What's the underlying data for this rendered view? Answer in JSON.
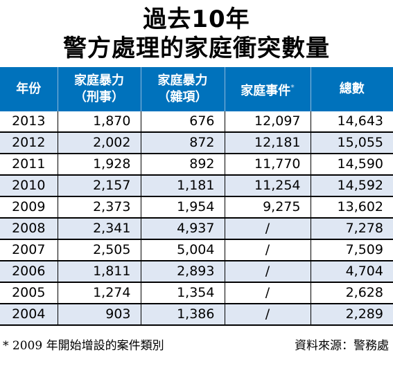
{
  "title": {
    "line1": "過去10年",
    "line2": "警方處理的家庭衝突數量"
  },
  "table": {
    "headers": {
      "year": "年份",
      "dv_criminal_line1": "家庭暴力",
      "dv_criminal_line2": "（刑事）",
      "dv_misc_line1": "家庭暴力",
      "dv_misc_line2": "（雜項）",
      "incident": "家庭事件",
      "incident_mark": "*",
      "total": "總數"
    },
    "rows": [
      [
        "2013",
        "1,870",
        "676",
        "12,097",
        "14,643"
      ],
      [
        "2012",
        "2,002",
        "872",
        "12,181",
        "15,055"
      ],
      [
        "2011",
        "1,928",
        "892",
        "11,770",
        "14,590"
      ],
      [
        "2010",
        "2,157",
        "1,181",
        "11,254",
        "14,592"
      ],
      [
        "2009",
        "2,373",
        "1,954",
        "9,275",
        "13,602"
      ],
      [
        "2008",
        "2,341",
        "4,937",
        "/",
        "7,278"
      ],
      [
        "2007",
        "2,505",
        "5,004",
        "/",
        "7,509"
      ],
      [
        "2006",
        "1,811",
        "2,893",
        "/",
        "4,704"
      ],
      [
        "2005",
        "1,274",
        "1,354",
        "/",
        "2,628"
      ],
      [
        "2004",
        "903",
        "1,386",
        "/",
        "2,289"
      ]
    ]
  },
  "footer": {
    "note": "* 2009 年開始增設的案件類別",
    "source": "資料來源：警務處"
  },
  "colors": {
    "header_bg": "#0072bc",
    "stripe": "#dfe7f3"
  }
}
